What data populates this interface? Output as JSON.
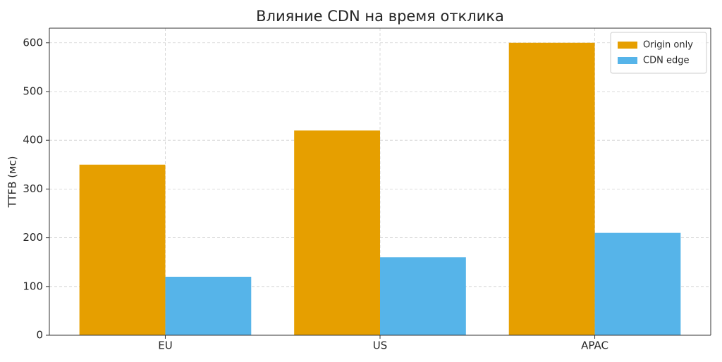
{
  "chart_data": {
    "type": "bar",
    "title": "Влияние CDN на время отклика",
    "y_label": "TTFB (мс)",
    "categories": [
      "EU",
      "US",
      "APAC"
    ],
    "series": [
      {
        "name": "Origin only",
        "color": "#E69F00",
        "values": [
          350,
          420,
          600
        ]
      },
      {
        "name": "CDN edge",
        "color": "#56B4E9",
        "values": [
          120,
          160,
          210
        ]
      }
    ],
    "ylim": [
      0,
      630
    ],
    "yticks": [
      0,
      100,
      200,
      300,
      400,
      500,
      600
    ],
    "grid": true,
    "legend": "upper-right"
  }
}
